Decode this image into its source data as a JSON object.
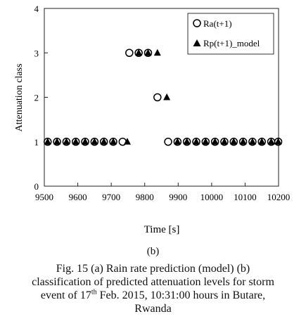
{
  "chart_data": {
    "type": "scatter",
    "xlabel": "Time [s]",
    "ylabel": "Attenuation class",
    "xlim": [
      9500,
      10200
    ],
    "ylim": [
      0,
      4
    ],
    "xticks": [
      "9500",
      "9600",
      "9700",
      "9800",
      "9900",
      "10000",
      "10100",
      "10200"
    ],
    "yticks": [
      "0",
      "1",
      "2",
      "3",
      "4"
    ],
    "grid": false,
    "legend_position": "top-right",
    "series": [
      {
        "name": "Ra(t+1)",
        "marker": "open-circle",
        "x": [
          9510,
          9538,
          9566,
          9594,
          9622,
          9650,
          9678,
          9706,
          9734,
          9754,
          9782,
          9810,
          9838,
          9870,
          9898,
          9926,
          9954,
          9982,
          10010,
          10038,
          10066,
          10094,
          10122,
          10150,
          10178,
          10199
        ],
        "y": [
          1,
          1,
          1,
          1,
          1,
          1,
          1,
          1,
          1,
          3,
          3,
          3,
          2,
          1,
          1,
          1,
          1,
          1,
          1,
          1,
          1,
          1,
          1,
          1,
          1,
          1
        ]
      },
      {
        "name": "Rp(t+1)_model",
        "marker": "filled-triangle",
        "x": [
          9510,
          9538,
          9566,
          9594,
          9622,
          9650,
          9678,
          9706,
          9748,
          9782,
          9810,
          9838,
          9866,
          9898,
          9926,
          9954,
          9982,
          10010,
          10038,
          10066,
          10094,
          10122,
          10150,
          10178,
          10199
        ],
        "y": [
          1,
          1,
          1,
          1,
          1,
          1,
          1,
          1,
          1,
          3,
          3,
          3,
          2,
          1,
          1,
          1,
          1,
          1,
          1,
          1,
          1,
          1,
          1,
          1,
          1
        ]
      }
    ]
  },
  "figure": {
    "sublabel": "(b)",
    "caption_line1": "Fig. 15  (a) Rain rate prediction (model) (b)",
    "caption_line2": "classification of predicted attenuation levels for storm",
    "caption_line3_before": "event of 17",
    "caption_line3_sup": "th",
    "caption_line3_after": " Feb. 2015, 10:31:00 hours in Butare,",
    "caption_line4": "Rwanda"
  }
}
